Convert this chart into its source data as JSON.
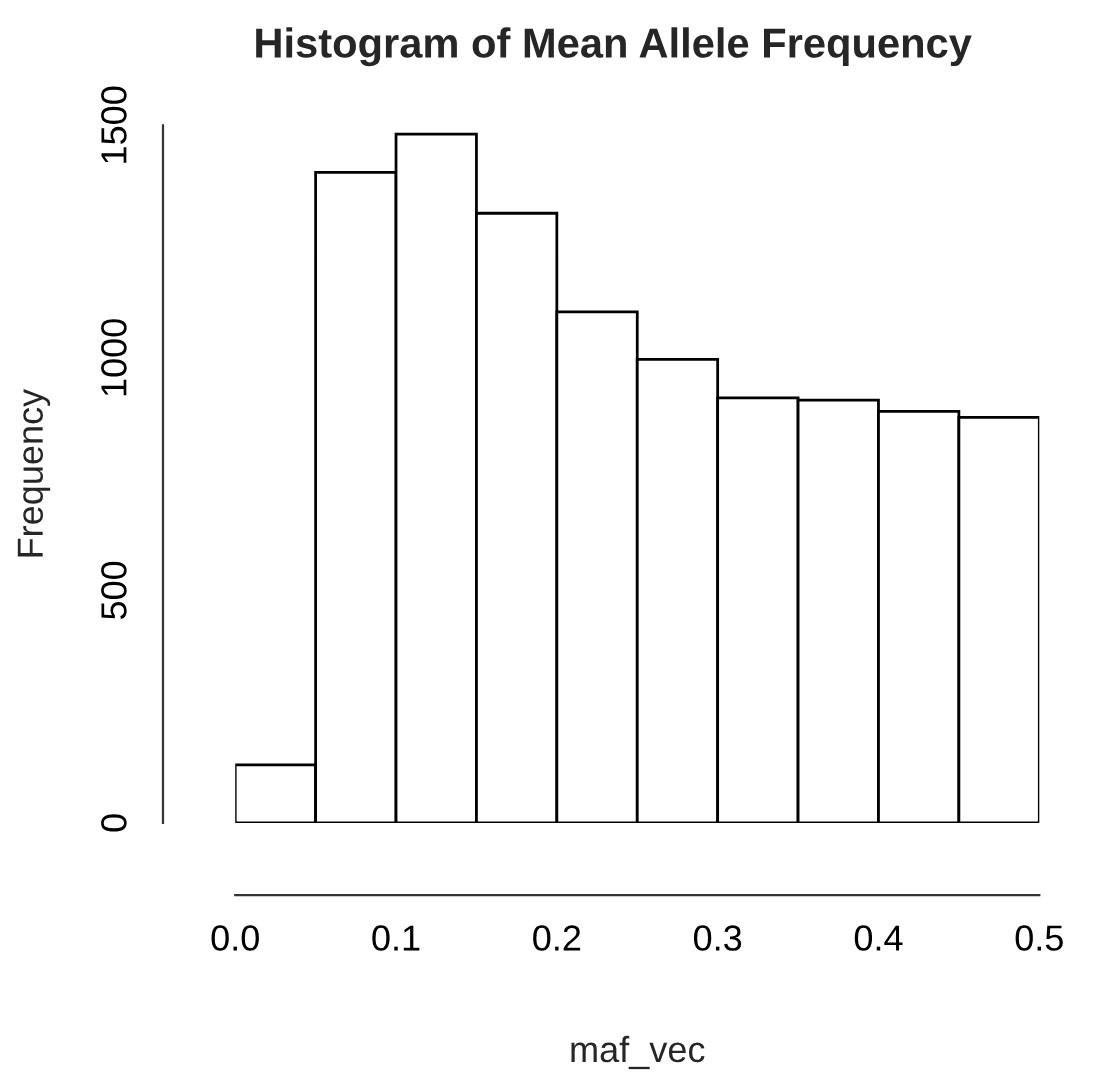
{
  "chart_data": {
    "type": "histogram",
    "title": "Histogram of Mean Allele Frequency",
    "xlabel": "maf_vec",
    "ylabel": "Frequency",
    "bins": [
      0.0,
      0.05,
      0.1,
      0.15,
      0.2,
      0.25,
      0.3,
      0.35,
      0.4,
      0.45,
      0.5
    ],
    "values": [
      125,
      1399,
      1481,
      1311,
      1099,
      997,
      914,
      909,
      885,
      872
    ],
    "color": "#ffffff",
    "xlim": [
      0.0,
      0.5
    ],
    "ylim": [
      0,
      1500
    ],
    "xticks": [
      {
        "value": 0.0,
        "label": "0.0"
      },
      {
        "value": 0.1,
        "label": "0.1"
      },
      {
        "value": 0.2,
        "label": "0.2"
      },
      {
        "value": 0.3,
        "label": "0.3"
      },
      {
        "value": 0.4,
        "label": "0.4"
      },
      {
        "value": 0.5,
        "label": "0.5"
      }
    ],
    "yticks": [
      0,
      500,
      1000,
      1500
    ],
    "grid": false
  }
}
